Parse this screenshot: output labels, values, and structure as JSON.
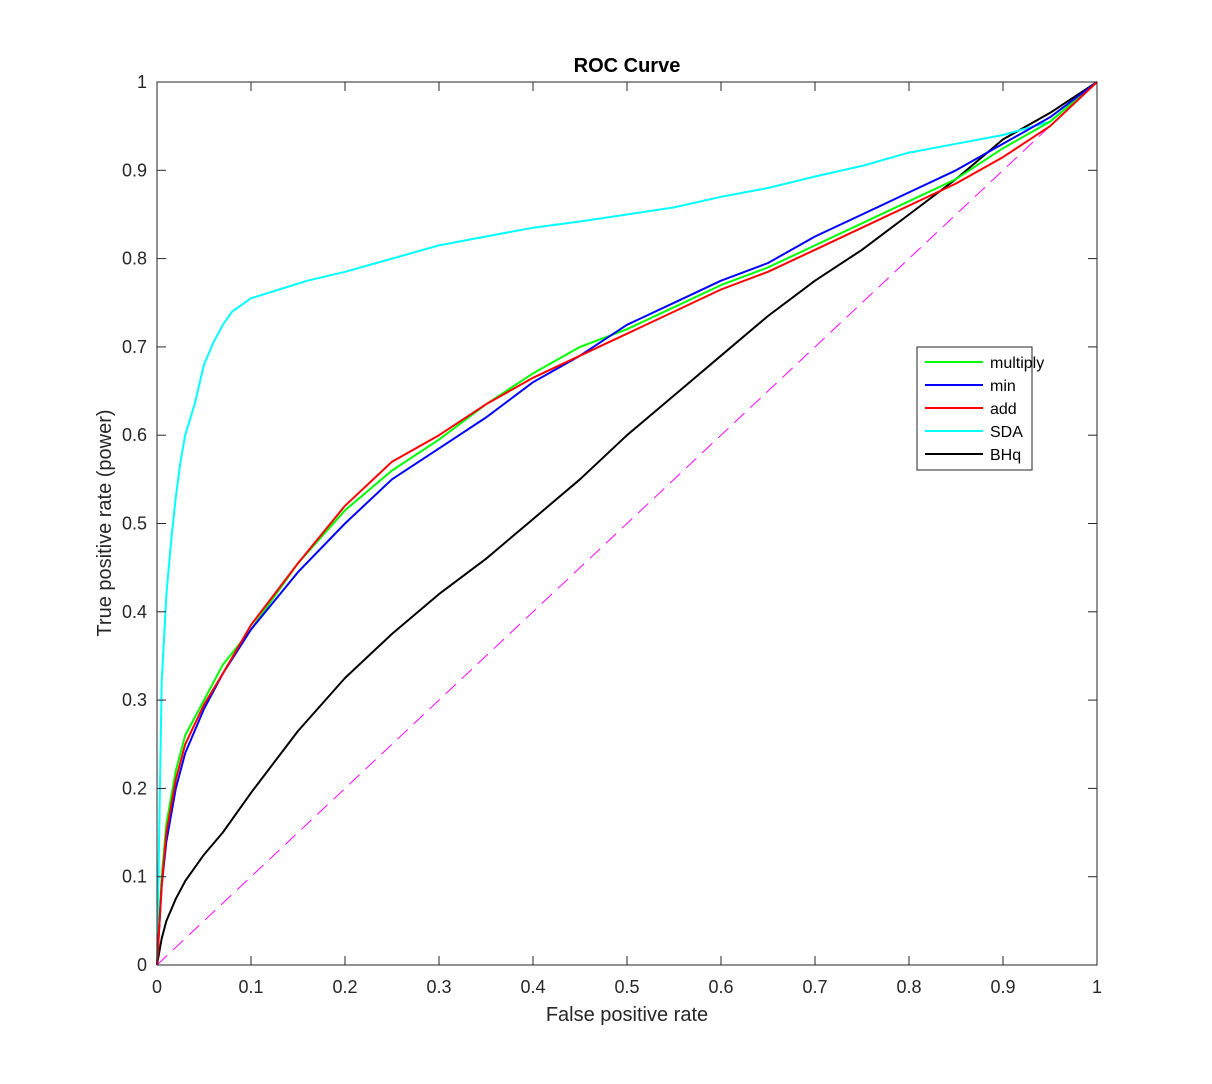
{
  "chart_data": {
    "type": "line",
    "title": "ROC Curve",
    "xlabel": "False positive rate",
    "ylabel": "True positive rate (power)",
    "xlim": [
      0,
      1
    ],
    "ylim": [
      0,
      1
    ],
    "xticks": [
      "0",
      "0.1",
      "0.2",
      "0.3",
      "0.4",
      "0.5",
      "0.6",
      "0.7",
      "0.8",
      "0.9",
      "1"
    ],
    "yticks": [
      "0",
      "0.1",
      "0.2",
      "0.3",
      "0.4",
      "0.5",
      "0.6",
      "0.7",
      "0.8",
      "0.9",
      "1"
    ],
    "grid": false,
    "legend_position": "right",
    "series": [
      {
        "name": "multiply",
        "color": "#00ff00",
        "x": [
          0,
          0.005,
          0.01,
          0.02,
          0.03,
          0.05,
          0.07,
          0.1,
          0.15,
          0.2,
          0.25,
          0.3,
          0.35,
          0.4,
          0.45,
          0.5,
          0.55,
          0.6,
          0.65,
          0.7,
          0.75,
          0.8,
          0.85,
          0.9,
          0.95,
          1
        ],
        "y": [
          0,
          0.1,
          0.16,
          0.22,
          0.26,
          0.3,
          0.34,
          0.38,
          0.455,
          0.515,
          0.56,
          0.595,
          0.635,
          0.67,
          0.7,
          0.72,
          0.745,
          0.77,
          0.79,
          0.815,
          0.84,
          0.865,
          0.89,
          0.925,
          0.955,
          1
        ]
      },
      {
        "name": "min",
        "color": "#0000ff",
        "x": [
          0,
          0.005,
          0.01,
          0.02,
          0.03,
          0.05,
          0.07,
          0.1,
          0.15,
          0.2,
          0.25,
          0.3,
          0.35,
          0.4,
          0.45,
          0.5,
          0.55,
          0.6,
          0.65,
          0.7,
          0.75,
          0.8,
          0.85,
          0.9,
          0.95,
          1
        ],
        "y": [
          0,
          0.09,
          0.14,
          0.2,
          0.24,
          0.29,
          0.33,
          0.38,
          0.445,
          0.5,
          0.55,
          0.585,
          0.62,
          0.66,
          0.69,
          0.725,
          0.75,
          0.775,
          0.795,
          0.825,
          0.85,
          0.875,
          0.9,
          0.93,
          0.96,
          1
        ]
      },
      {
        "name": "add",
        "color": "#ff0000",
        "x": [
          0,
          0.005,
          0.01,
          0.02,
          0.03,
          0.05,
          0.07,
          0.1,
          0.15,
          0.2,
          0.25,
          0.3,
          0.35,
          0.4,
          0.45,
          0.5,
          0.55,
          0.6,
          0.65,
          0.7,
          0.75,
          0.8,
          0.85,
          0.9,
          0.95,
          1
        ],
        "y": [
          0,
          0.09,
          0.15,
          0.21,
          0.25,
          0.295,
          0.33,
          0.385,
          0.455,
          0.52,
          0.57,
          0.6,
          0.635,
          0.665,
          0.69,
          0.715,
          0.74,
          0.765,
          0.785,
          0.81,
          0.835,
          0.86,
          0.885,
          0.915,
          0.95,
          1
        ]
      },
      {
        "name": "SDA",
        "color": "#00ffff",
        "x": [
          0,
          0.005,
          0.01,
          0.015,
          0.02,
          0.025,
          0.03,
          0.04,
          0.05,
          0.06,
          0.07,
          0.08,
          0.1,
          0.13,
          0.16,
          0.2,
          0.25,
          0.3,
          0.35,
          0.4,
          0.45,
          0.5,
          0.55,
          0.6,
          0.65,
          0.7,
          0.75,
          0.8,
          0.85,
          0.9,
          0.95,
          1
        ],
        "y": [
          0,
          0.32,
          0.42,
          0.48,
          0.53,
          0.57,
          0.6,
          0.635,
          0.68,
          0.705,
          0.725,
          0.74,
          0.755,
          0.765,
          0.775,
          0.785,
          0.8,
          0.815,
          0.825,
          0.835,
          0.842,
          0.85,
          0.858,
          0.87,
          0.88,
          0.893,
          0.905,
          0.92,
          0.93,
          0.94,
          0.955,
          1
        ]
      },
      {
        "name": "BHq",
        "color": "#000000",
        "x": [
          0,
          0.005,
          0.01,
          0.02,
          0.03,
          0.05,
          0.07,
          0.1,
          0.15,
          0.2,
          0.25,
          0.3,
          0.35,
          0.4,
          0.45,
          0.5,
          0.55,
          0.6,
          0.65,
          0.7,
          0.75,
          0.8,
          0.85,
          0.9,
          0.95,
          1
        ],
        "y": [
          0,
          0.03,
          0.05,
          0.075,
          0.095,
          0.125,
          0.15,
          0.195,
          0.265,
          0.325,
          0.375,
          0.42,
          0.46,
          0.505,
          0.55,
          0.6,
          0.645,
          0.69,
          0.735,
          0.775,
          0.81,
          0.85,
          0.89,
          0.935,
          0.965,
          1
        ]
      },
      {
        "name": "",
        "color": "#ff00ff",
        "dashed": true,
        "x": [
          0,
          1
        ],
        "y": [
          0,
          1
        ]
      }
    ]
  }
}
